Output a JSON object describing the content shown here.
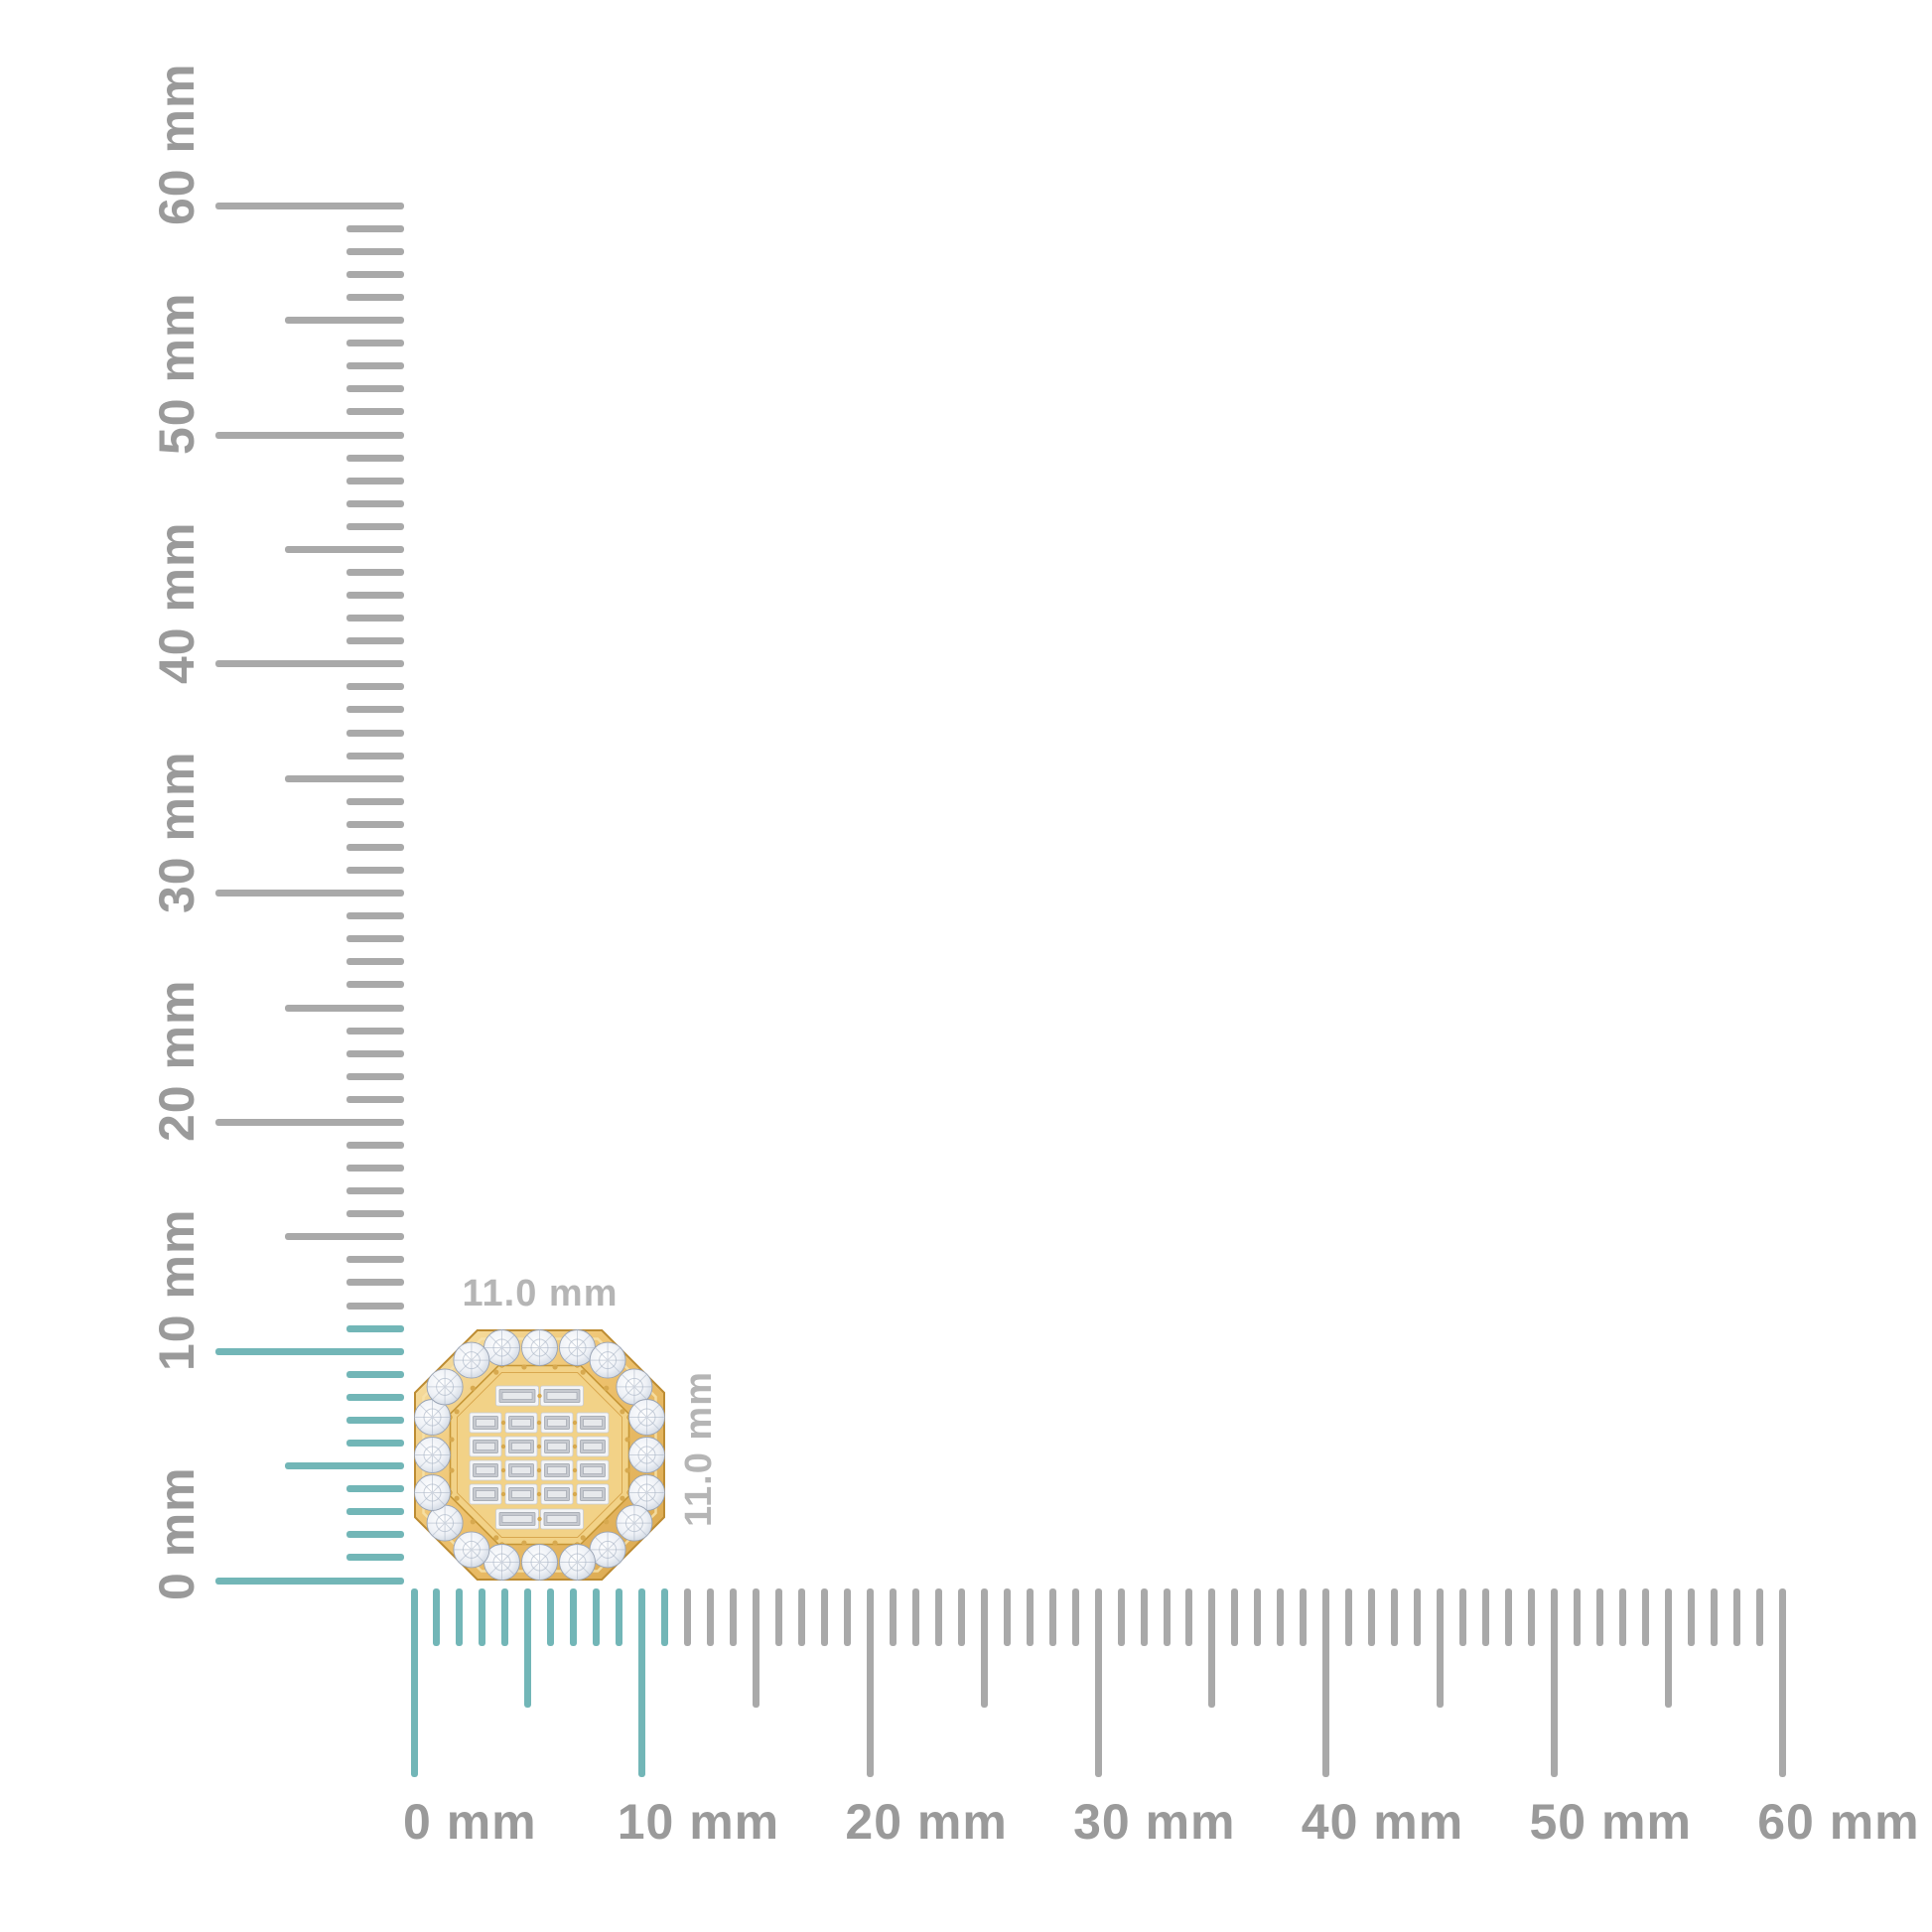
{
  "scene": {
    "description": "Product size reference image: octagonal diamond halo stud earring shown against millimeter rulers",
    "background_color": "#ffffff"
  },
  "rulers": {
    "unit": "mm",
    "min": 0,
    "max": 60,
    "minor_step": 1,
    "medium_step": 5,
    "major_step": 10,
    "tick_color": "#a9a9a9",
    "highlight_color": "#72b6b7",
    "highlight_from_mm": 0,
    "highlight_to_mm": 11,
    "label_color": "#9a9a9a",
    "vertical_labels": [
      "0 mm",
      "10 mm",
      "20 mm",
      "30 mm",
      "40 mm",
      "50 mm",
      "60 mm"
    ],
    "horizontal_labels": [
      "0 mm",
      "10 mm",
      "20 mm",
      "30 mm",
      "40 mm",
      "50 mm",
      "60 mm"
    ]
  },
  "dimension_labels": {
    "top": "11.0 mm",
    "right": "11.0 mm",
    "color": "#b5b5b5"
  },
  "item": {
    "name": "octagonal halo stud earring",
    "width_mm": 11.0,
    "height_mm": 11.0,
    "halo_round_stone_count": 20,
    "baguette_grid_rows": 4,
    "baguette_grid_cols": 4,
    "baguette_top_row_count": 2,
    "baguette_bottom_row_count": 2,
    "colors": {
      "gold_light": "#f7e3ab",
      "gold_mid": "#eec26e",
      "gold_deep": "#d9a74e",
      "gold_line": "#bd8c33",
      "gold_bead": "#d7a94f",
      "plate_fill": "#f2d287",
      "plate_line": "#c69636",
      "diamond_center": "#ffffff",
      "diamond_mid": "#eef1f6",
      "diamond_edge": "#c3cdda",
      "diamond_stroke": "#98a2b3",
      "facet_line": "#a9b4c4",
      "baguette_frame": "#f4f5f7",
      "baguette_face": "#c6c9cf",
      "baguette_face_light": "#e7e9ec",
      "baguette_step_line": "#9aa0a9"
    }
  }
}
